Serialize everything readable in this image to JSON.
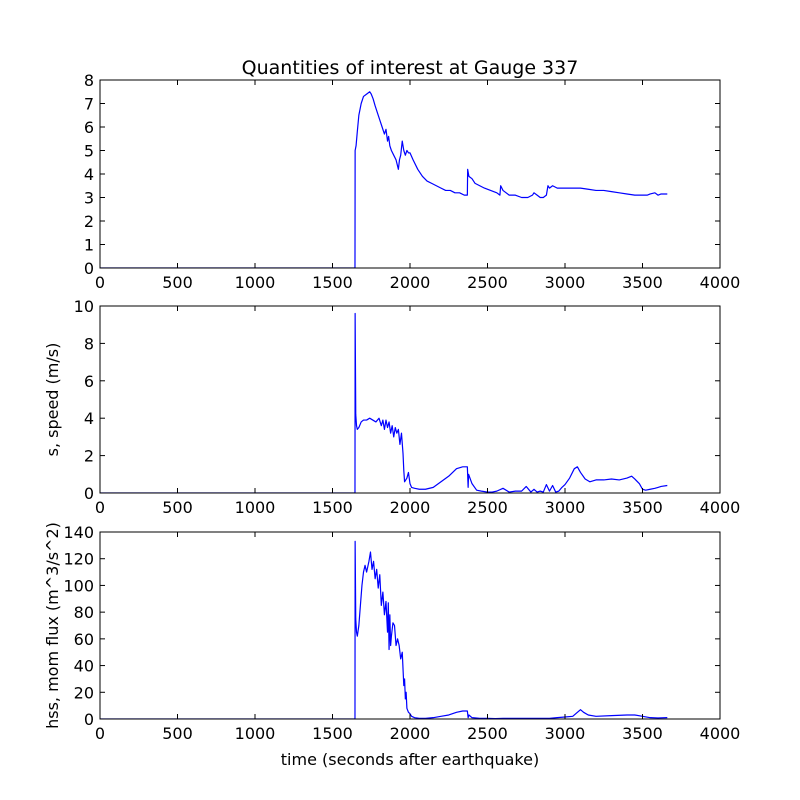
{
  "figure": {
    "title": "Quantities of interest at Gauge 337",
    "xlabel": "time (seconds after earthquake)"
  },
  "chart_data": [
    {
      "type": "line",
      "title": "Quantities of interest at Gauge 337",
      "xlabel": "",
      "ylabel": "",
      "xlim": [
        0,
        4000
      ],
      "ylim": [
        0,
        8
      ],
      "xticks": [
        0,
        500,
        1000,
        1500,
        2000,
        2500,
        3000,
        3500,
        4000
      ],
      "yticks": [
        0,
        1,
        2,
        3,
        4,
        5,
        6,
        7,
        8
      ],
      "grid": false,
      "color": "#0000ff",
      "x": [
        0,
        1645,
        1646,
        1652,
        1660,
        1670,
        1685,
        1700,
        1720,
        1740,
        1750,
        1762,
        1775,
        1790,
        1805,
        1820,
        1835,
        1845,
        1855,
        1862,
        1870,
        1880,
        1895,
        1910,
        1925,
        1932,
        1940,
        1950,
        1960,
        1970,
        1980,
        1990,
        2000,
        2020,
        2050,
        2080,
        2110,
        2140,
        2170,
        2200,
        2230,
        2260,
        2290,
        2320,
        2350,
        2370,
        2372,
        2380,
        2400,
        2420,
        2450,
        2480,
        2520,
        2560,
        2580,
        2585,
        2600,
        2640,
        2680,
        2720,
        2760,
        2790,
        2800,
        2820,
        2840,
        2860,
        2880,
        2890,
        2900,
        2920,
        2950,
        3000,
        3050,
        3100,
        3150,
        3200,
        3250,
        3300,
        3350,
        3400,
        3450,
        3500,
        3530,
        3550,
        3580,
        3600,
        3620,
        3660
      ],
      "y": [
        0,
        0,
        5.0,
        5.2,
        5.8,
        6.5,
        7.0,
        7.3,
        7.4,
        7.5,
        7.4,
        7.2,
        6.9,
        6.6,
        6.3,
        6.0,
        5.7,
        5.9,
        5.4,
        5.6,
        5.2,
        5.0,
        4.8,
        4.6,
        4.2,
        4.6,
        4.8,
        5.4,
        5.0,
        4.8,
        5.0,
        4.9,
        4.9,
        4.6,
        4.2,
        3.9,
        3.7,
        3.6,
        3.5,
        3.4,
        3.3,
        3.3,
        3.2,
        3.2,
        3.1,
        3.1,
        4.2,
        3.9,
        3.8,
        3.6,
        3.5,
        3.4,
        3.3,
        3.2,
        3.1,
        3.5,
        3.3,
        3.1,
        3.1,
        3.0,
        3.0,
        3.1,
        3.2,
        3.1,
        3.0,
        3.0,
        3.1,
        3.5,
        3.4,
        3.5,
        3.4,
        3.4,
        3.4,
        3.4,
        3.35,
        3.3,
        3.3,
        3.25,
        3.2,
        3.15,
        3.1,
        3.1,
        3.1,
        3.15,
        3.2,
        3.1,
        3.15,
        3.15
      ]
    },
    {
      "type": "line",
      "xlabel": "",
      "ylabel": "s, speed (m/s)",
      "xlim": [
        0,
        4000
      ],
      "ylim": [
        0,
        10
      ],
      "xticks": [
        0,
        500,
        1000,
        1500,
        2000,
        2500,
        3000,
        3500,
        4000
      ],
      "yticks": [
        0,
        2,
        4,
        6,
        8,
        10
      ],
      "grid": false,
      "color": "#0000ff",
      "x": [
        0,
        1645,
        1646,
        1650,
        1655,
        1660,
        1670,
        1685,
        1700,
        1720,
        1740,
        1760,
        1780,
        1800,
        1815,
        1825,
        1835,
        1845,
        1855,
        1865,
        1875,
        1885,
        1895,
        1905,
        1915,
        1925,
        1935,
        1945,
        1955,
        1960,
        1965,
        1980,
        1990,
        2000,
        2010,
        2030,
        2060,
        2100,
        2150,
        2200,
        2250,
        2300,
        2340,
        2370,
        2375,
        2378,
        2400,
        2430,
        2460,
        2500,
        2530,
        2560,
        2600,
        2640,
        2680,
        2720,
        2750,
        2780,
        2800,
        2820,
        2840,
        2860,
        2880,
        2900,
        2920,
        2940,
        2960,
        2980,
        3000,
        3030,
        3060,
        3080,
        3100,
        3130,
        3160,
        3200,
        3250,
        3300,
        3350,
        3400,
        3430,
        3450,
        3480,
        3500,
        3520,
        3550,
        3580,
        3600,
        3620,
        3660
      ],
      "y": [
        0,
        0,
        9.6,
        4.2,
        3.6,
        3.4,
        3.5,
        3.8,
        3.9,
        3.9,
        4.0,
        3.9,
        3.8,
        4.0,
        3.6,
        3.9,
        3.4,
        3.9,
        3.5,
        3.8,
        3.2,
        3.6,
        3.0,
        3.5,
        3.2,
        3.4,
        2.6,
        3.2,
        2.1,
        1.2,
        0.6,
        0.8,
        1.1,
        0.5,
        0.3,
        0.25,
        0.2,
        0.2,
        0.3,
        0.6,
        0.9,
        1.3,
        1.4,
        1.4,
        0.3,
        1.0,
        0.5,
        0.15,
        0.1,
        0.05,
        0.05,
        0.1,
        0.25,
        0.05,
        0.1,
        0.1,
        0.35,
        0.05,
        0.2,
        0.05,
        0.1,
        0.05,
        0.45,
        0.1,
        0.4,
        0.05,
        0.1,
        0.3,
        0.45,
        0.8,
        1.3,
        1.4,
        1.1,
        0.75,
        0.6,
        0.7,
        0.7,
        0.75,
        0.7,
        0.8,
        0.9,
        0.75,
        0.5,
        0.2,
        0.15,
        0.2,
        0.25,
        0.3,
        0.35,
        0.4
      ]
    },
    {
      "type": "line",
      "xlabel": "time (seconds after earthquake)",
      "ylabel": "hss, mom flux (m^3/s^2)",
      "xlim": [
        0,
        4000
      ],
      "ylim": [
        0,
        140
      ],
      "xticks": [
        0,
        500,
        1000,
        1500,
        2000,
        2500,
        3000,
        3500,
        4000
      ],
      "yticks": [
        0,
        20,
        40,
        60,
        80,
        100,
        120,
        140
      ],
      "grid": false,
      "color": "#0000ff",
      "x": [
        0,
        1645,
        1646,
        1650,
        1655,
        1660,
        1670,
        1680,
        1690,
        1700,
        1710,
        1720,
        1735,
        1745,
        1755,
        1765,
        1775,
        1785,
        1795,
        1805,
        1815,
        1825,
        1835,
        1845,
        1855,
        1860,
        1865,
        1870,
        1875,
        1880,
        1890,
        1900,
        1910,
        1920,
        1930,
        1940,
        1950,
        1960,
        1965,
        1970,
        1975,
        1980,
        1990,
        2000,
        2010,
        2030,
        2060,
        2100,
        2150,
        2200,
        2250,
        2300,
        2340,
        2370,
        2375,
        2380,
        2400,
        2450,
        2500,
        2550,
        2600,
        2700,
        2800,
        2900,
        2950,
        3000,
        3050,
        3080,
        3100,
        3120,
        3150,
        3200,
        3300,
        3400,
        3450,
        3500,
        3550,
        3600,
        3660
      ],
      "y": [
        0,
        0,
        133,
        75,
        65,
        62,
        70,
        85,
        100,
        110,
        115,
        110,
        118,
        125,
        112,
        118,
        105,
        112,
        98,
        108,
        85,
        95,
        78,
        88,
        65,
        87,
        52,
        78,
        55,
        62,
        72,
        70,
        55,
        60,
        55,
        45,
        50,
        25,
        30,
        15,
        20,
        8,
        5,
        4,
        2,
        1,
        0.5,
        0.5,
        1,
        2,
        3,
        5,
        6,
        6,
        1,
        3,
        1,
        0.5,
        0.5,
        0.3,
        0.5,
        0.5,
        0.5,
        0.5,
        1,
        1.5,
        2,
        5,
        7,
        5,
        3,
        2,
        2.5,
        3,
        3,
        2,
        1,
        0.8,
        1
      ]
    }
  ]
}
